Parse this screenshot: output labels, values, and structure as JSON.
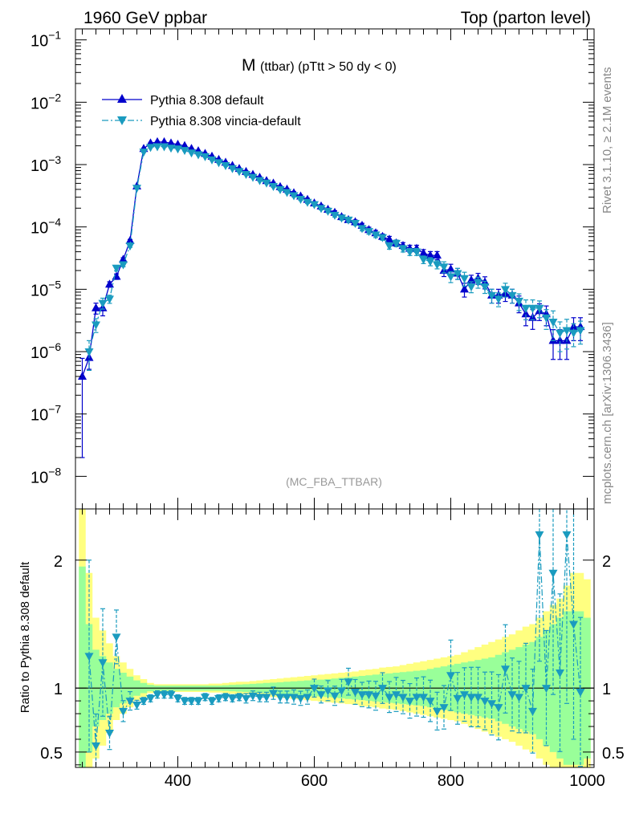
{
  "header": {
    "left": "1960 GeV ppbar",
    "right": "Top (parton level)"
  },
  "side": {
    "rivet": "Rivet 3.1.10, ≥ 2.1M events",
    "mcplots": "mcplots.cern.ch [arXiv:1306.3436]"
  },
  "plot_title": {
    "main": "M",
    "sub": "(ttbar) (pTtt > 50 dy < 0)"
  },
  "watermark": "(MC_FBA_TTBAR)",
  "chart_data": [
    {
      "type": "line",
      "panel": "main",
      "yscale": "log",
      "xlim": [
        250,
        1010
      ],
      "ylim": [
        3e-09,
        0.15
      ],
      "ytick_values": [
        1e-08,
        1e-07,
        1e-06,
        1e-05,
        0.0001,
        0.001,
        0.01,
        0.1
      ],
      "ytick_mantissa": "10",
      "ytick_exponents": [
        "−8",
        "−7",
        "−6",
        "−5",
        "−4",
        "−3",
        "−2",
        "−1"
      ],
      "xlabel": "",
      "ylabel": "",
      "series": [
        {
          "name": "Pythia 8.308 default",
          "color": "#0000cc",
          "marker": "triangle-up",
          "dash": "solid",
          "x": [
            260,
            270,
            280,
            290,
            300,
            310,
            320,
            330,
            340,
            350,
            360,
            370,
            380,
            390,
            400,
            410,
            420,
            430,
            440,
            450,
            460,
            470,
            480,
            490,
            500,
            510,
            520,
            530,
            540,
            550,
            560,
            570,
            580,
            590,
            600,
            610,
            620,
            630,
            640,
            650,
            660,
            670,
            680,
            690,
            700,
            710,
            720,
            730,
            740,
            750,
            760,
            770,
            780,
            790,
            800,
            810,
            820,
            830,
            840,
            850,
            860,
            870,
            880,
            890,
            900,
            910,
            920,
            930,
            940,
            950,
            960,
            970,
            980,
            990
          ],
          "y": [
            4e-07,
            8e-07,
            5e-06,
            5e-06,
            1.2e-05,
            1.6e-05,
            3e-05,
            6e-05,
            0.00045,
            0.0018,
            0.0022,
            0.0023,
            0.0023,
            0.0022,
            0.0021,
            0.002,
            0.0018,
            0.00165,
            0.0015,
            0.00135,
            0.0012,
            0.00108,
            0.00096,
            0.00086,
            0.00077,
            0.00069,
            0.00062,
            0.00055,
            0.0005,
            0.00044,
            0.0004,
            0.00035,
            0.00031,
            0.000275,
            0.00024,
            0.000215,
            0.00019,
            0.00017,
            0.000145,
            0.00013,
            0.00012,
            0.000105,
            9e-05,
            8e-05,
            7e-05,
            6.3e-05,
            5.5e-05,
            5e-05,
            4.5e-05,
            4.5e-05,
            3.8e-05,
            3.5e-05,
            3.5e-05,
            2e-05,
            2.1e-05,
            1.8e-05,
            1e-05,
            1.4e-05,
            1.5e-05,
            1.3e-05,
            8e-06,
            8e-06,
            8.5e-06,
            8e-06,
            6e-06,
            4e-06,
            3.5e-06,
            4.5e-06,
            4e-06,
            1.5e-06,
            1.5e-06,
            1.5e-06,
            2.5e-06,
            2.5e-06
          ],
          "yerr_rel": [
            0.95,
            0.35,
            0.2,
            0.25,
            0.1,
            0.1,
            0.07,
            0.05,
            0.03,
            0.02,
            0.02,
            0.02,
            0.02,
            0.02,
            0.02,
            0.02,
            0.02,
            0.02,
            0.02,
            0.02,
            0.02,
            0.02,
            0.02,
            0.02,
            0.03,
            0.03,
            0.03,
            0.03,
            0.04,
            0.04,
            0.04,
            0.05,
            0.05,
            0.05,
            0.06,
            0.06,
            0.06,
            0.07,
            0.08,
            0.08,
            0.08,
            0.09,
            0.1,
            0.1,
            0.1,
            0.12,
            0.12,
            0.12,
            0.13,
            0.13,
            0.14,
            0.15,
            0.15,
            0.2,
            0.2,
            0.2,
            0.25,
            0.2,
            0.2,
            0.22,
            0.25,
            0.25,
            0.25,
            0.25,
            0.3,
            0.35,
            0.35,
            0.3,
            0.35,
            0.5,
            0.5,
            0.5,
            0.4,
            0.4
          ]
        },
        {
          "name": "Pythia 8.308 vincia-default",
          "color": "#1a9bbf",
          "marker": "triangle-down",
          "dash": "dashdot",
          "x": [
            270,
            280,
            290,
            300,
            310,
            320,
            330,
            340,
            350,
            360,
            370,
            380,
            390,
            400,
            410,
            420,
            430,
            440,
            450,
            460,
            470,
            480,
            490,
            500,
            510,
            520,
            530,
            540,
            550,
            560,
            570,
            580,
            590,
            600,
            610,
            620,
            630,
            640,
            650,
            660,
            670,
            680,
            690,
            700,
            710,
            720,
            730,
            740,
            750,
            760,
            770,
            780,
            790,
            800,
            810,
            820,
            830,
            840,
            850,
            860,
            870,
            880,
            890,
            900,
            910,
            920,
            930,
            940,
            950,
            960,
            970,
            980,
            990
          ],
          "y": [
            1e-06,
            2.7e-06,
            6e-06,
            7e-06,
            2.2e-05,
            2.5e-05,
            5e-05,
            0.00042,
            0.0016,
            0.0019,
            0.00195,
            0.00195,
            0.00185,
            0.0018,
            0.0017,
            0.00155,
            0.00145,
            0.00135,
            0.0012,
            0.00108,
            0.00097,
            0.00087,
            0.00078,
            0.0007,
            0.00063,
            0.00056,
            0.00051,
            0.00045,
            0.0004,
            0.00036,
            0.00032,
            0.00028,
            0.00025,
            0.00023,
            0.0002,
            0.00018,
            0.000155,
            0.00014,
            0.00013,
            0.000115,
            9.5e-05,
            8.5e-05,
            7.5e-05,
            6.8e-05,
            5e-05,
            5.5e-05,
            4.5e-05,
            4e-05,
            4e-05,
            3e-05,
            2.8e-05,
            2.5e-05,
            2.3e-05,
            1.6e-05,
            1.8e-05,
            1.5e-05,
            1.1e-05,
            1.3e-05,
            1.1e-05,
            8e-06,
            7e-06,
            1e-05,
            8e-06,
            6.5e-06,
            5e-06,
            5e-06,
            5e-06,
            3.5e-06,
            3e-06,
            2e-06,
            2.2e-06,
            2e-06,
            2.2e-06
          ],
          "yerr_rel": [
            0.5,
            0.25,
            0.2,
            0.15,
            0.1,
            0.08,
            0.06,
            0.03,
            0.02,
            0.02,
            0.02,
            0.02,
            0.02,
            0.02,
            0.02,
            0.02,
            0.02,
            0.02,
            0.02,
            0.02,
            0.02,
            0.02,
            0.02,
            0.03,
            0.03,
            0.03,
            0.03,
            0.04,
            0.04,
            0.04,
            0.05,
            0.05,
            0.05,
            0.06,
            0.06,
            0.06,
            0.07,
            0.08,
            0.08,
            0.08,
            0.09,
            0.1,
            0.1,
            0.1,
            0.12,
            0.12,
            0.12,
            0.13,
            0.13,
            0.14,
            0.15,
            0.15,
            0.2,
            0.2,
            0.2,
            0.25,
            0.2,
            0.2,
            0.22,
            0.25,
            0.25,
            0.25,
            0.25,
            0.3,
            0.35,
            0.35,
            0.3,
            0.35,
            0.5,
            0.5,
            0.5,
            0.4,
            0.4
          ]
        }
      ]
    },
    {
      "type": "line",
      "panel": "ratio",
      "xlim": [
        250,
        1010
      ],
      "ylim": [
        0.38,
        2.4
      ],
      "ylabel": "Ratio to Pythia 8.308 default",
      "ytick_values": [
        0.5,
        1,
        2
      ],
      "ytick_labels": [
        "0.5",
        "1",
        "2"
      ],
      "xticks": [
        400,
        600,
        800,
        1000
      ],
      "xtick_labels": [
        "400",
        "600",
        "800",
        "1000"
      ],
      "reference": 1,
      "bands": {
        "x_edges": [
          255,
          265,
          275,
          285,
          295,
          305,
          315,
          325,
          335,
          345,
          355,
          365,
          375,
          385,
          395,
          405,
          415,
          425,
          435,
          445,
          455,
          465,
          475,
          485,
          495,
          505,
          515,
          525,
          535,
          545,
          555,
          565,
          575,
          585,
          595,
          605,
          615,
          625,
          635,
          645,
          655,
          665,
          675,
          685,
          695,
          705,
          715,
          725,
          735,
          745,
          755,
          765,
          775,
          785,
          795,
          805,
          815,
          825,
          835,
          845,
          855,
          865,
          875,
          885,
          895,
          905,
          915,
          925,
          935,
          945,
          955,
          965,
          975,
          985,
          995,
          1005
        ],
        "stat_rel": [
          0.95,
          0.5,
          0.3,
          0.25,
          0.2,
          0.15,
          0.12,
          0.09,
          0.06,
          0.04,
          0.025,
          0.02,
          0.02,
          0.02,
          0.02,
          0.02,
          0.02,
          0.02,
          0.02,
          0.02,
          0.02,
          0.022,
          0.025,
          0.028,
          0.03,
          0.033,
          0.036,
          0.04,
          0.043,
          0.046,
          0.05,
          0.053,
          0.056,
          0.06,
          0.063,
          0.066,
          0.07,
          0.075,
          0.08,
          0.085,
          0.09,
          0.095,
          0.1,
          0.105,
          0.11,
          0.115,
          0.12,
          0.125,
          0.13,
          0.135,
          0.14,
          0.15,
          0.16,
          0.17,
          0.18,
          0.19,
          0.2,
          0.21,
          0.22,
          0.23,
          0.24,
          0.26,
          0.28,
          0.3,
          0.32,
          0.34,
          0.36,
          0.4,
          0.45,
          0.5,
          0.55,
          0.6,
          0.6,
          0.6,
          0.55
        ],
        "total_rel": [
          1.5,
          0.9,
          0.55,
          0.45,
          0.35,
          0.25,
          0.2,
          0.15,
          0.1,
          0.07,
          0.04,
          0.03,
          0.03,
          0.03,
          0.03,
          0.03,
          0.03,
          0.03,
          0.03,
          0.035,
          0.035,
          0.04,
          0.045,
          0.05,
          0.05,
          0.055,
          0.06,
          0.065,
          0.07,
          0.075,
          0.08,
          0.085,
          0.09,
          0.095,
          0.1,
          0.105,
          0.11,
          0.115,
          0.12,
          0.125,
          0.13,
          0.14,
          0.145,
          0.15,
          0.16,
          0.165,
          0.17,
          0.18,
          0.19,
          0.2,
          0.21,
          0.22,
          0.23,
          0.24,
          0.25,
          0.26,
          0.28,
          0.3,
          0.32,
          0.34,
          0.36,
          0.38,
          0.4,
          0.42,
          0.45,
          0.48,
          0.5,
          0.55,
          0.6,
          0.65,
          0.7,
          0.8,
          0.9,
          0.9,
          0.85
        ],
        "stat_color": "#99ff99",
        "total_color": "#ffff80"
      },
      "series": [
        {
          "name": "Pythia 8.308 vincia-default",
          "color": "#1a9bbf",
          "marker": "triangle-down",
          "x": [
            270,
            280,
            290,
            300,
            310,
            320,
            330,
            340,
            350,
            360,
            370,
            380,
            390,
            400,
            410,
            420,
            430,
            440,
            450,
            460,
            470,
            480,
            490,
            500,
            510,
            520,
            530,
            540,
            550,
            560,
            570,
            580,
            590,
            600,
            610,
            620,
            630,
            640,
            650,
            660,
            670,
            680,
            690,
            700,
            710,
            720,
            730,
            740,
            750,
            760,
            770,
            780,
            790,
            800,
            810,
            820,
            830,
            840,
            850,
            860,
            870,
            880,
            890,
            900,
            910,
            920,
            930,
            940,
            950,
            960,
            970,
            980,
            990
          ],
          "y": [
            1.25,
            0.55,
            1.2,
            0.65,
            1.4,
            0.82,
            0.9,
            0.87,
            0.9,
            0.92,
            0.95,
            0.95,
            0.95,
            0.92,
            0.9,
            0.9,
            0.9,
            0.93,
            0.9,
            0.92,
            0.93,
            0.92,
            0.93,
            0.92,
            0.94,
            0.93,
            0.93,
            0.96,
            0.93,
            0.93,
            0.93,
            0.92,
            0.93,
            1.0,
            0.95,
            0.98,
            0.94,
            0.98,
            1.05,
            0.97,
            0.95,
            0.95,
            0.94,
            1.0,
            0.93,
            0.95,
            0.93,
            0.9,
            0.93,
            0.93,
            0.9,
            0.82,
            0.85,
            1.1,
            0.92,
            0.95,
            0.93,
            0.93,
            0.9,
            0.88,
            0.85,
            1.15,
            0.95,
            0.93,
            1.0,
            0.82,
            2.2,
            1.0,
            1.9,
            1.12,
            2.2,
            1.5,
            0.97
          ],
          "yerr_rel": [
            0.6,
            0.45,
            0.35,
            0.2,
            0.15,
            0.1,
            0.08,
            0.04,
            0.03,
            0.03,
            0.03,
            0.03,
            0.03,
            0.03,
            0.03,
            0.03,
            0.03,
            0.03,
            0.03,
            0.03,
            0.03,
            0.03,
            0.03,
            0.04,
            0.04,
            0.04,
            0.04,
            0.05,
            0.05,
            0.05,
            0.06,
            0.06,
            0.06,
            0.07,
            0.07,
            0.08,
            0.08,
            0.09,
            0.1,
            0.1,
            0.1,
            0.11,
            0.12,
            0.12,
            0.13,
            0.14,
            0.14,
            0.15,
            0.16,
            0.17,
            0.18,
            0.18,
            0.2,
            0.25,
            0.22,
            0.22,
            0.25,
            0.25,
            0.25,
            0.28,
            0.3,
            0.3,
            0.3,
            0.3,
            0.35,
            0.4,
            0.45,
            0.45,
            0.5,
            0.55,
            0.6,
            0.6,
            0.6
          ]
        }
      ]
    }
  ]
}
